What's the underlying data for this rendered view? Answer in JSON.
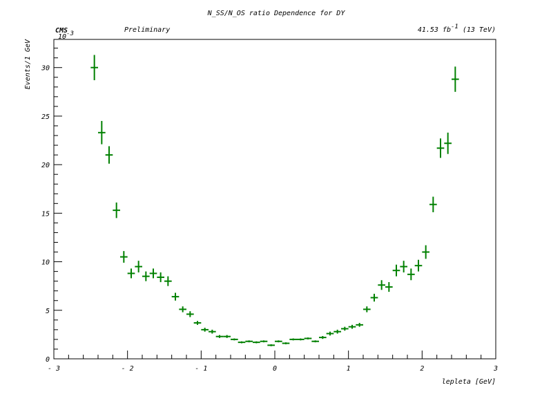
{
  "chart_data": {
    "type": "scatter",
    "title": "N_SS/N_OS ratio Dependence for DY",
    "subtitle_left": "CMS",
    "subtitle_center": "Preliminary",
    "luminosity": "41.53 fb",
    "luminosity_exponent": "-1",
    "energy": "(13 TeV)",
    "xlabel": "lepleta [GeV]",
    "ylabel": "Events/1 GeV",
    "y_multiplier": "10",
    "y_multiplier_exponent": "-3",
    "xlim": [
      -3,
      3
    ],
    "ylim": [
      0,
      32.9
    ],
    "x_ticks": [
      -3,
      -2,
      -1,
      0,
      1,
      2,
      3
    ],
    "x_tick_labels": [
      "- 3",
      "- 2",
      "- 1",
      "0",
      "1",
      "2",
      "3"
    ],
    "y_ticks": [
      0,
      5,
      10,
      15,
      20,
      25,
      30
    ],
    "y_tick_labels": [
      "0",
      "5",
      "10",
      "15",
      "20",
      "25",
      "30"
    ],
    "bin_width": 0.1,
    "grid": false,
    "marker_color": "#008000",
    "series": [
      {
        "x": [
          -2.45,
          -2.35,
          -2.25,
          -2.15,
          -2.05,
          -1.95,
          -1.85,
          -1.75,
          -1.65,
          -1.55,
          -1.45,
          -1.35,
          -1.25,
          -1.15,
          -1.05,
          -0.95,
          -0.85,
          -0.75,
          -0.65,
          -0.55,
          -0.45,
          -0.35,
          -0.25,
          -0.15,
          -0.05,
          0.05,
          0.15,
          0.25,
          0.35,
          0.45,
          0.55,
          0.65,
          0.75,
          0.85,
          0.95,
          1.05,
          1.15,
          1.25,
          1.35,
          1.45,
          1.55,
          1.65,
          1.75,
          1.85,
          1.95,
          2.05,
          2.15,
          2.25,
          2.35,
          2.45
        ],
        "y": [
          30.0,
          23.3,
          21.0,
          15.3,
          10.5,
          8.8,
          9.5,
          8.5,
          8.8,
          8.4,
          8.0,
          6.4,
          5.1,
          4.6,
          3.7,
          3.0,
          2.8,
          2.3,
          2.3,
          2.0,
          1.7,
          1.8,
          1.7,
          1.8,
          1.4,
          1.8,
          1.6,
          2.0,
          2.0,
          2.1,
          1.8,
          2.2,
          2.6,
          2.8,
          3.1,
          3.3,
          3.5,
          5.1,
          6.3,
          7.6,
          7.4,
          9.1,
          9.5,
          8.7,
          9.6,
          11.0,
          15.9,
          21.7,
          22.2,
          28.8
        ],
        "err": [
          1.3,
          1.2,
          0.9,
          0.8,
          0.6,
          0.5,
          0.6,
          0.5,
          0.5,
          0.5,
          0.5,
          0.4,
          0.3,
          0.3,
          0.2,
          0.2,
          0.2,
          0.15,
          0.15,
          0.1,
          0.1,
          0.1,
          0.1,
          0.1,
          0.1,
          0.1,
          0.1,
          0.1,
          0.1,
          0.1,
          0.1,
          0.15,
          0.2,
          0.2,
          0.2,
          0.2,
          0.2,
          0.3,
          0.4,
          0.5,
          0.5,
          0.6,
          0.6,
          0.6,
          0.6,
          0.7,
          0.8,
          1.0,
          1.1,
          1.3
        ]
      }
    ]
  }
}
